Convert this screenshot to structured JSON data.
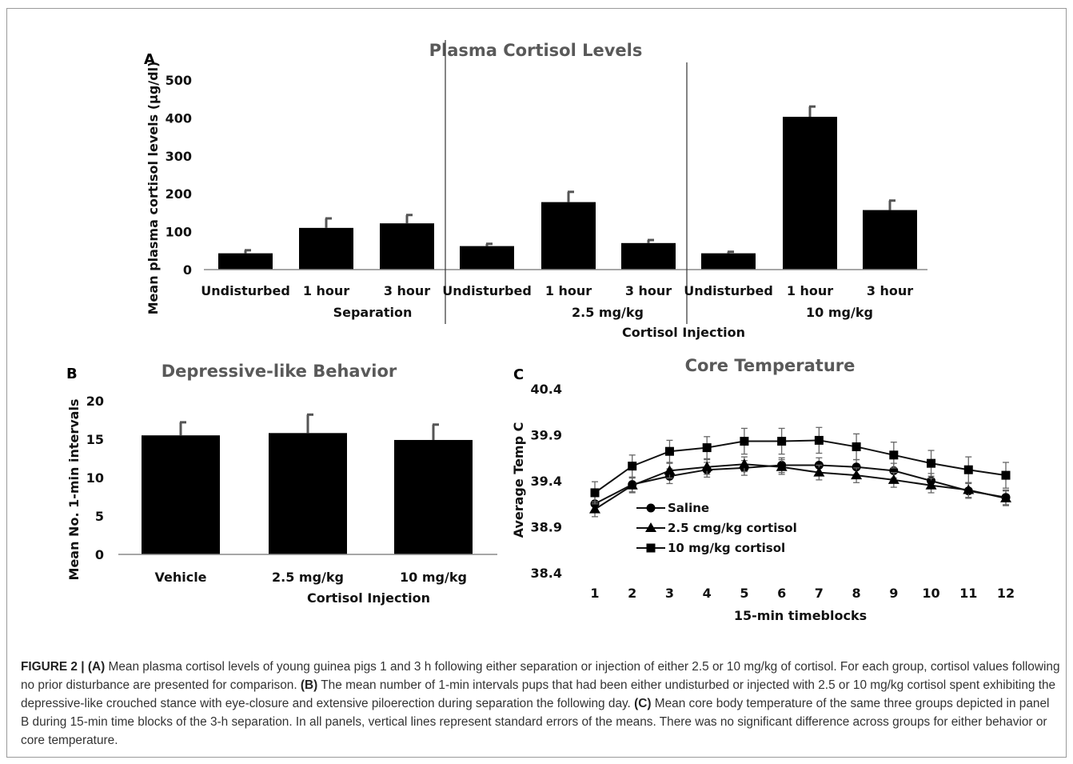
{
  "chart_data": [
    {
      "panel": "A",
      "type": "bar",
      "title": "Plasma Cortisol Levels",
      "ylabel": "Mean plasma cortisol levels (µg/dl)",
      "ylim": [
        0,
        500
      ],
      "yticks": [
        0,
        100,
        200,
        300,
        400,
        500
      ],
      "groups": [
        {
          "label": "Separation",
          "categories": [
            "Undisturbed",
            "1 hour",
            "3 hour"
          ],
          "values": [
            43,
            110,
            122
          ],
          "errors": [
            8,
            25,
            22
          ]
        },
        {
          "label": "2.5 mg/kg",
          "categories": [
            "Undisturbed",
            "1 hour",
            "3 hour"
          ],
          "values": [
            62,
            178,
            70
          ],
          "errors": [
            6,
            27,
            8
          ]
        },
        {
          "label": "10 mg/kg",
          "categories": [
            "Undisturbed",
            "1 hour",
            "3 hour"
          ],
          "values": [
            43,
            403,
            157
          ],
          "errors": [
            4,
            27,
            25
          ]
        }
      ],
      "supergroup_label": "Cortisol Injection",
      "grid": false
    },
    {
      "panel": "B",
      "type": "bar",
      "title": "Depressive-like Behavior",
      "categories": [
        "Vehicle",
        "2.5 mg/kg",
        "10 mg/kg"
      ],
      "values": [
        15.5,
        15.8,
        14.9
      ],
      "errors": [
        1.7,
        2.4,
        2.0
      ],
      "xlabel": "Cortisol Injection",
      "ylabel": "Mean No. 1-min intervals",
      "ylim": [
        0,
        20
      ],
      "yticks": [
        0,
        5,
        10,
        15,
        20
      ],
      "grid": false
    },
    {
      "panel": "C",
      "type": "line",
      "title": "Core Temperature",
      "xlabel": "15-min timeblocks",
      "ylabel": "Average Temp C",
      "x": [
        1,
        2,
        3,
        4,
        5,
        6,
        7,
        8,
        9,
        10,
        11,
        12
      ],
      "ylim": [
        38.4,
        40.4
      ],
      "yticks": [
        "38.4",
        "38.9",
        "39.4",
        "39.9",
        "40.4"
      ],
      "series": [
        {
          "name": "Saline",
          "marker": "circle",
          "values": [
            39.15,
            39.36,
            39.45,
            39.52,
            39.54,
            39.57,
            39.57,
            39.55,
            39.51,
            39.4,
            39.29,
            39.22
          ],
          "errors": [
            0.08,
            0.08,
            0.08,
            0.08,
            0.08,
            0.08,
            0.08,
            0.08,
            0.08,
            0.08,
            0.08,
            0.08
          ]
        },
        {
          "name": "2.5 cmg/kg cortisol",
          "marker": "triangle",
          "values": [
            39.09,
            39.35,
            39.51,
            39.55,
            39.58,
            39.55,
            39.49,
            39.46,
            39.41,
            39.35,
            39.3,
            39.21
          ],
          "errors": [
            0.08,
            0.08,
            0.08,
            0.08,
            0.08,
            0.08,
            0.08,
            0.08,
            0.08,
            0.08,
            0.08,
            0.08
          ]
        },
        {
          "name": "10 mg/kg cortisol",
          "marker": "square",
          "values": [
            39.27,
            39.56,
            39.72,
            39.76,
            39.83,
            39.83,
            39.84,
            39.77,
            39.68,
            39.59,
            39.52,
            39.46
          ],
          "errors": [
            0.12,
            0.12,
            0.12,
            0.12,
            0.14,
            0.14,
            0.14,
            0.14,
            0.14,
            0.14,
            0.14,
            0.14
          ]
        }
      ],
      "legend": "bottom-left",
      "grid": false
    }
  ],
  "caption": {
    "figure_label": "FIGURE 2 |",
    "parts": [
      {
        "label": "(A)",
        "text": "Mean plasma cortisol levels of young guinea pigs 1 and 3 h following either separation or injection of either 2.5 or 10 mg/kg of cortisol. For each group, cortisol values following no prior disturbance are presented for comparison."
      },
      {
        "label": "(B)",
        "text": "The mean number of 1-min intervals pups that had been either undisturbed or injected with 2.5 or 10 mg/kg cortisol spent exhibiting the depressive-like crouched stance with eye-closure and extensive piloerection during separation the following day."
      },
      {
        "label": "(C)",
        "text": "Mean core body temperature of the same three groups depicted in panel B during 15-min time blocks of the 3-h separation. In all panels, vertical lines represent standard errors of the means. There was no significant difference across groups for either behavior or core temperature."
      }
    ]
  }
}
